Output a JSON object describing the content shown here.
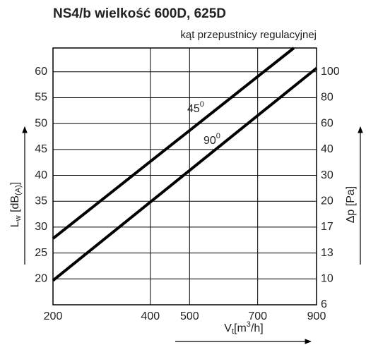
{
  "chart_data": {
    "type": "line",
    "title": "NS4/b wielkość 600D, 625D",
    "subtitle": "kąt przepustnicy regulacyjnej",
    "xlabel": {
      "main": "V",
      "sub": "t",
      "unit": "[m",
      "sup": "3",
      "close": "/h]"
    },
    "ylabel": {
      "main": "L",
      "sub": "w",
      "unit": " [dB",
      "unit_sub": "(A)",
      "close": "]"
    },
    "y2label": "Δp [Pa]",
    "xscale": "sqrt",
    "xlim": [
      200,
      900
    ],
    "xticks": [
      200,
      400,
      500,
      700,
      900
    ],
    "ylim": [
      15,
      64.6
    ],
    "yticks": [
      20,
      25,
      30,
      35,
      40,
      45,
      50,
      55,
      60
    ],
    "y2scale": "equal-spacing",
    "y2ticks": [
      6,
      10,
      13,
      17,
      20,
      30,
      40,
      60,
      80,
      100
    ],
    "grid": true,
    "series": [
      {
        "name": "45",
        "name_sup": "0",
        "color": "#000000",
        "x": [
          200,
          820
        ],
        "values": [
          27.8,
          64.6
        ]
      },
      {
        "name": "90",
        "name_sup": "0",
        "color": "#000000",
        "x": [
          200,
          900
        ],
        "values": [
          19.7,
          60.7
        ]
      }
    ]
  }
}
